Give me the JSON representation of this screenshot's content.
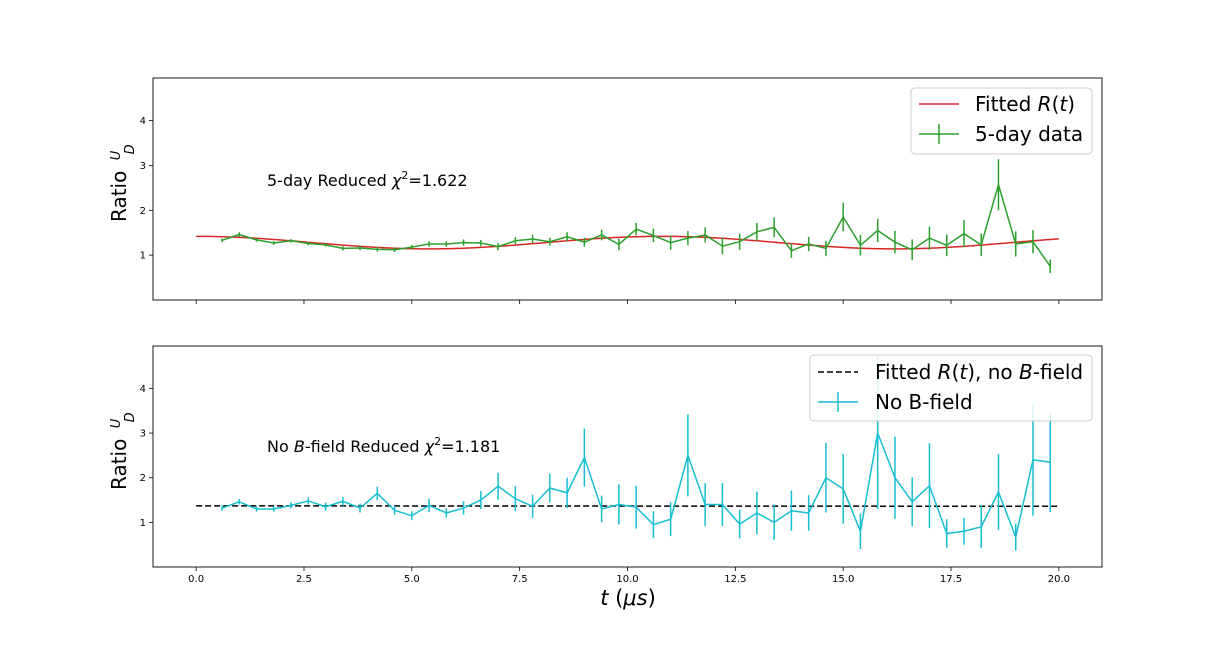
{
  "chart_data": [
    {
      "type": "line",
      "panel": "top",
      "ylabel": "Ratio U/D",
      "ylabel_text": "Ratio",
      "ylabel_frac_num": "U",
      "ylabel_frac_den": "D",
      "annotation": "5-day Reduced χ²=1.622",
      "annotation_parts": [
        "5-day Reduced ",
        "χ",
        "2",
        "=1.622"
      ],
      "xlim": [
        -1.0,
        21.0
      ],
      "ylim": [
        0.0,
        4.95
      ],
      "yticks": [
        1,
        2,
        3,
        4
      ],
      "legend_position": "top-right",
      "colors": {
        "fit": "#d62728",
        "data": "#2ca02c"
      },
      "series": [
        {
          "name": "Fitted R(t)",
          "legend_parts": [
            "Fitted ",
            "R",
            "(",
            "t",
            ")"
          ],
          "kind": "fit",
          "model": "sinusoid",
          "params": {
            "offset": 1.28,
            "amplitude": 0.14,
            "period": 10.8,
            "phase": 0.0
          },
          "x_range": [
            0.0,
            20.0
          ]
        },
        {
          "name": "5-day data",
          "kind": "errorbar",
          "x": [
            0.6,
            1.0,
            1.4,
            1.8,
            2.2,
            2.6,
            3.0,
            3.4,
            3.8,
            4.2,
            4.6,
            5.0,
            5.4,
            5.8,
            6.2,
            6.6,
            7.0,
            7.4,
            7.8,
            8.2,
            8.6,
            9.0,
            9.4,
            9.8,
            10.2,
            10.6,
            11.0,
            11.4,
            11.8,
            12.2,
            12.6,
            13.0,
            13.4,
            13.8,
            14.2,
            14.6,
            15.0,
            15.4,
            15.8,
            16.2,
            16.6,
            17.0,
            17.4,
            17.8,
            18.2,
            18.6,
            19.0,
            19.4,
            19.8
          ],
          "y": [
            1.33,
            1.46,
            1.34,
            1.27,
            1.32,
            1.26,
            1.23,
            1.15,
            1.16,
            1.13,
            1.12,
            1.18,
            1.25,
            1.25,
            1.28,
            1.27,
            1.19,
            1.32,
            1.36,
            1.3,
            1.41,
            1.29,
            1.45,
            1.24,
            1.58,
            1.44,
            1.28,
            1.38,
            1.45,
            1.2,
            1.3,
            1.52,
            1.62,
            1.1,
            1.25,
            1.15,
            1.85,
            1.22,
            1.55,
            1.29,
            1.12,
            1.38,
            1.22,
            1.48,
            1.23,
            2.57,
            1.25,
            1.3,
            0.75
          ],
          "yerr": [
            0.04,
            0.05,
            0.04,
            0.04,
            0.04,
            0.04,
            0.04,
            0.05,
            0.05,
            0.05,
            0.05,
            0.05,
            0.06,
            0.06,
            0.07,
            0.07,
            0.08,
            0.08,
            0.09,
            0.09,
            0.1,
            0.1,
            0.12,
            0.13,
            0.14,
            0.15,
            0.16,
            0.16,
            0.17,
            0.18,
            0.18,
            0.2,
            0.22,
            0.16,
            0.16,
            0.17,
            0.32,
            0.23,
            0.26,
            0.25,
            0.23,
            0.26,
            0.24,
            0.3,
            0.25,
            0.57,
            0.28,
            0.26,
            0.15
          ]
        }
      ]
    },
    {
      "type": "line",
      "panel": "bottom",
      "ylabel": "Ratio U/D",
      "ylabel_text": "Ratio",
      "ylabel_frac_num": "U",
      "ylabel_frac_den": "D",
      "annotation": "No B-field Reduced χ²=1.181",
      "annotation_parts": [
        "No ",
        "B",
        "-field Reduced ",
        "χ",
        "2",
        "=1.181"
      ],
      "xlim": [
        -1.0,
        21.0
      ],
      "ylim": [
        0.0,
        4.95
      ],
      "yticks": [
        1,
        2,
        3,
        4
      ],
      "xticks": [
        0.0,
        2.5,
        5.0,
        7.5,
        10.0,
        12.5,
        15.0,
        17.5,
        20.0
      ],
      "xtick_labels": [
        "0.0",
        "2.5",
        "5.0",
        "7.5",
        "10.0",
        "12.5",
        "15.0",
        "17.5",
        "20.0"
      ],
      "xlabel": "t (μs)",
      "xlabel_parts": [
        "t",
        " (",
        "μs",
        ")"
      ],
      "legend_position": "top-right",
      "colors": {
        "fit": "#000000",
        "data": "#17becf"
      },
      "series": [
        {
          "name": "Fitted R(t), no B-field",
          "legend_parts": [
            "Fitted ",
            "R",
            "(",
            "t",
            "), no ",
            "B",
            "-field"
          ],
          "kind": "fit",
          "model": "linear",
          "params": {
            "y0": 1.37,
            "y1": 1.36
          },
          "x_range": [
            0.0,
            20.0
          ],
          "dashed": true
        },
        {
          "name": "No B-field",
          "kind": "errorbar",
          "x": [
            0.6,
            1.0,
            1.4,
            1.8,
            2.2,
            2.6,
            3.0,
            3.4,
            3.8,
            4.2,
            4.6,
            5.0,
            5.4,
            5.8,
            6.2,
            6.6,
            7.0,
            7.4,
            7.8,
            8.2,
            8.6,
            9.0,
            9.4,
            9.8,
            10.2,
            10.6,
            11.0,
            11.4,
            11.8,
            12.2,
            12.6,
            13.0,
            13.4,
            13.8,
            14.2,
            14.6,
            15.0,
            15.4,
            15.8,
            16.2,
            16.6,
            17.0,
            17.4,
            17.8,
            18.2,
            18.6,
            19.0,
            19.4,
            19.8
          ],
          "y": [
            1.32,
            1.46,
            1.3,
            1.3,
            1.38,
            1.48,
            1.35,
            1.47,
            1.32,
            1.65,
            1.27,
            1.15,
            1.38,
            1.21,
            1.32,
            1.5,
            1.81,
            1.53,
            1.36,
            1.77,
            1.66,
            2.45,
            1.3,
            1.4,
            1.34,
            0.95,
            1.07,
            2.5,
            1.4,
            1.4,
            0.96,
            1.21,
            1.0,
            1.26,
            1.21,
            2.0,
            1.75,
            0.8,
            3.0,
            2.0,
            1.46,
            1.82,
            0.75,
            0.8,
            0.9,
            1.68,
            0.67,
            2.4,
            2.35
          ],
          "yerr": [
            0.06,
            0.06,
            0.06,
            0.06,
            0.07,
            0.08,
            0.09,
            0.1,
            0.1,
            0.15,
            0.1,
            0.1,
            0.15,
            0.1,
            0.15,
            0.2,
            0.3,
            0.28,
            0.26,
            0.32,
            0.34,
            0.65,
            0.3,
            0.45,
            0.48,
            0.3,
            0.38,
            0.92,
            0.48,
            0.48,
            0.32,
            0.48,
            0.4,
            0.45,
            0.4,
            0.78,
            0.78,
            0.4,
            1.7,
            0.92,
            0.55,
            0.95,
            0.32,
            0.3,
            0.48,
            0.85,
            0.3,
            1.25,
            1.12
          ]
        }
      ]
    }
  ]
}
